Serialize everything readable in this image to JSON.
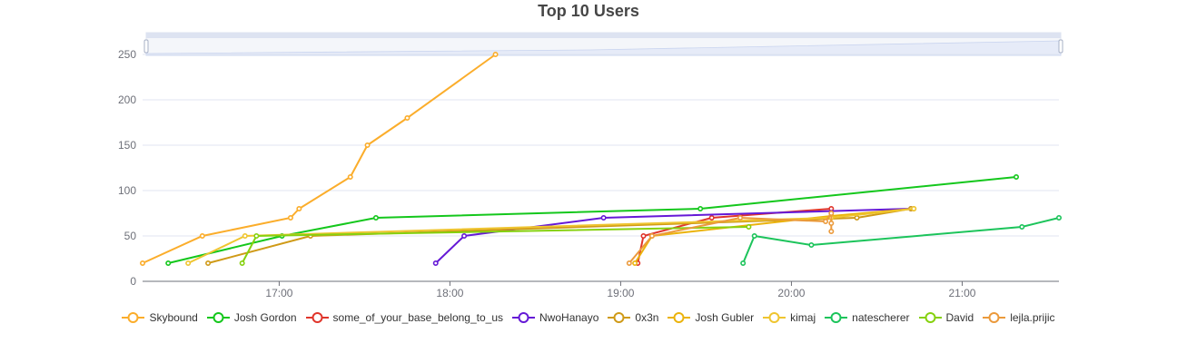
{
  "chart_data": {
    "type": "line",
    "title": "Top 10 Users",
    "xlabel": "",
    "ylabel": "",
    "x_ticks": [
      "17:00",
      "18:00",
      "19:00",
      "20:00",
      "21:00"
    ],
    "y_ticks": [
      0,
      50,
      100,
      150,
      200,
      250
    ],
    "xlim": [
      "16:12",
      "21:34"
    ],
    "ylim": [
      0,
      250
    ],
    "grid": "horizontal",
    "legend_position": "bottom",
    "data_zoom": {
      "start": 0,
      "end": 100
    },
    "series": [
      {
        "name": "Skybound",
        "color": "#fbad2b",
        "points": [
          [
            "16:12",
            20
          ],
          [
            "16:33",
            50
          ],
          [
            "17:04",
            70
          ],
          [
            "17:07",
            80
          ],
          [
            "17:25",
            115
          ],
          [
            "17:31",
            150
          ],
          [
            "17:45",
            180
          ],
          [
            "18:16",
            250
          ]
        ]
      },
      {
        "name": "Josh Gordon",
        "color": "#14c71c",
        "points": [
          [
            "16:21",
            20
          ],
          [
            "17:01",
            50
          ],
          [
            "17:34",
            70
          ],
          [
            "19:28",
            80
          ],
          [
            "21:19",
            115
          ]
        ]
      },
      {
        "name": "some_of_your_base_belong_to_us",
        "color": "#e0352b",
        "points": [
          [
            "19:06",
            20
          ],
          [
            "19:08",
            50
          ],
          [
            "19:32",
            70
          ],
          [
            "20:14",
            80
          ]
        ]
      },
      {
        "name": "NwoHanayo",
        "color": "#6519d6",
        "points": [
          [
            "17:55",
            20
          ],
          [
            "18:05",
            50
          ],
          [
            "18:54",
            70
          ],
          [
            "20:42",
            80
          ]
        ]
      },
      {
        "name": "0x3n",
        "color": "#cf9a17",
        "points": [
          [
            "16:35",
            20
          ],
          [
            "17:11",
            50
          ],
          [
            "20:23",
            70
          ],
          [
            "20:42",
            80
          ]
        ]
      },
      {
        "name": "Josh Gubler",
        "color": "#ebb30c",
        "points": [
          [
            "19:05",
            20
          ],
          [
            "19:11",
            50
          ],
          [
            "20:14",
            72
          ],
          [
            "20:43",
            80
          ]
        ]
      },
      {
        "name": "kimaj",
        "color": "#efc530",
        "points": [
          [
            "16:28",
            20
          ],
          [
            "16:48",
            50
          ],
          [
            "20:14",
            70
          ],
          [
            "20:43",
            80
          ]
        ]
      },
      {
        "name": "natescherer",
        "color": "#1cc45b",
        "points": [
          [
            "19:43",
            20
          ],
          [
            "19:47",
            50
          ],
          [
            "20:07",
            40
          ],
          [
            "21:21",
            60
          ],
          [
            "21:34",
            70
          ]
        ]
      },
      {
        "name": "David",
        "color": "#86d10f",
        "points": [
          [
            "16:47",
            20
          ],
          [
            "16:52",
            50
          ],
          [
            "19:45",
            60
          ]
        ]
      },
      {
        "name": "lejla.prijic",
        "color": "#eb9a3c",
        "points": [
          [
            "19:03",
            20
          ],
          [
            "19:11",
            50
          ],
          [
            "19:42",
            70
          ],
          [
            "20:12",
            66
          ],
          [
            "20:14",
            75
          ],
          [
            "20:14",
            64
          ],
          [
            "20:14",
            55
          ]
        ]
      }
    ]
  }
}
